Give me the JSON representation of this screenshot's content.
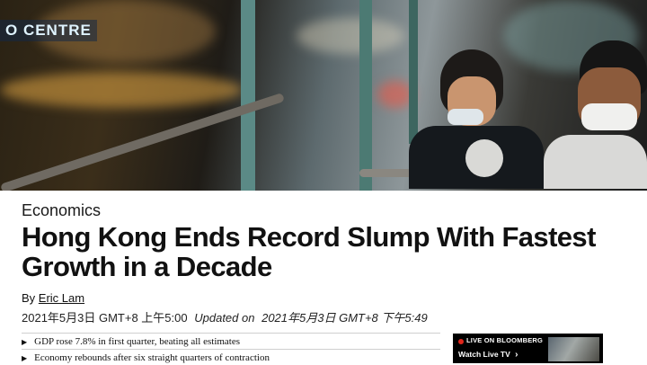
{
  "hero": {
    "sign_text": "O CENTRE",
    "image_alt": "Passengers wearing masks on a Hong Kong tram at night"
  },
  "article": {
    "category": "Economics",
    "headline": "Hong Kong Ends Record Slump With Fastest Growth in a Decade",
    "byline_prefix": "By",
    "author": "Eric Lam",
    "published": "2021年5月3日 GMT+8 上午5:00",
    "updated_label": "Updated on",
    "updated": "2021年5月3日 GMT+8 下午5:49"
  },
  "bullets": [
    "GDP rose 7.8% in first quarter, beating all estimates",
    "Economy rebounds after six straight quarters of contraction"
  ],
  "live_tv": {
    "label": "LIVE ON BLOOMBERG",
    "watch": "Watch Live TV",
    "chevron": "›",
    "accent": "#e0261b"
  }
}
